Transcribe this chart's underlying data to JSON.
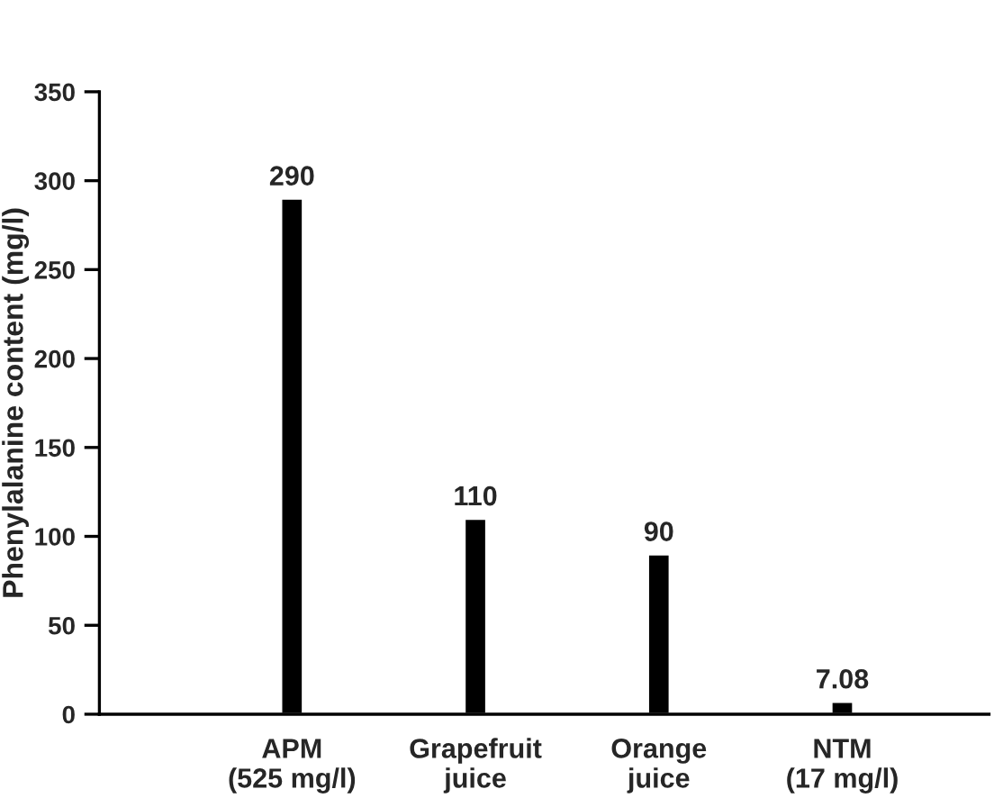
{
  "chart_data": {
    "type": "bar",
    "ylabel": "Phenylalanine content (mg/l)",
    "categories": [
      "APM\n(525 mg/l)",
      "Grapefruit\njuice",
      "Orange\njuice",
      "NTM\n(17 mg/l)"
    ],
    "values": [
      290,
      110,
      90,
      7.08
    ],
    "color": "#000000",
    "data_labels": true,
    "ylim": [
      0,
      350
    ],
    "yticks": [
      0,
      50,
      100,
      150,
      200,
      250,
      300,
      350
    ],
    "grid": false,
    "legend": false
  }
}
